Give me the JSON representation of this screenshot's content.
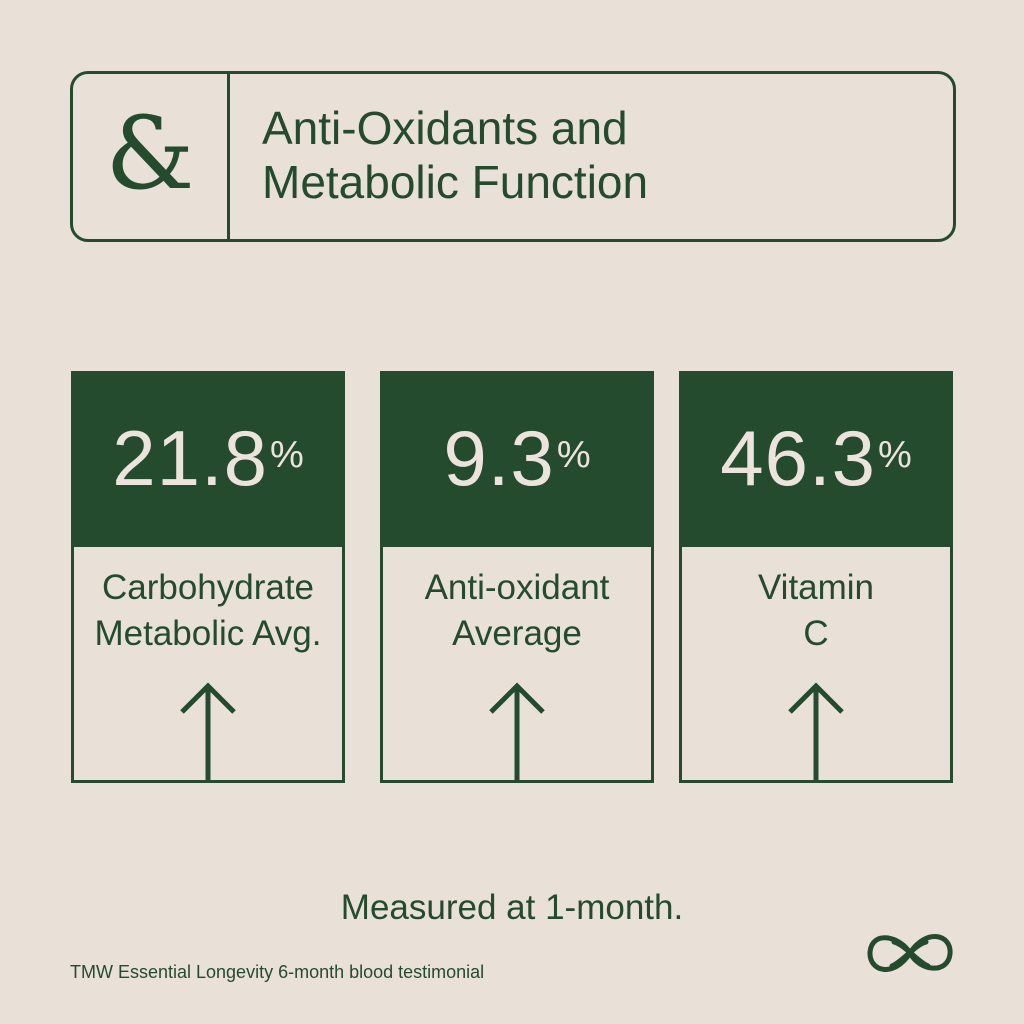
{
  "header": {
    "symbol": "&",
    "title": "Anti-Oxidants and\nMetabolic Function"
  },
  "cards": [
    {
      "value": "21.8",
      "unit": "%",
      "label": "Carbohydrate\nMetabolic Avg.",
      "direction": "up-arrow-icon"
    },
    {
      "value": "9.3",
      "unit": "%",
      "label": "Anti-oxidant\nAverage",
      "direction": "up-arrow-icon"
    },
    {
      "value": "46.3",
      "unit": "%",
      "label": "Vitamin\nC",
      "direction": "up-arrow-icon"
    }
  ],
  "footnote": "Measured at 1-month.",
  "source": "TMW Essential Longevity 6-month blood testimonial",
  "colors": {
    "background": "#e9e0d8",
    "accent": "#254b2f",
    "card_text": "#ece4dc"
  }
}
